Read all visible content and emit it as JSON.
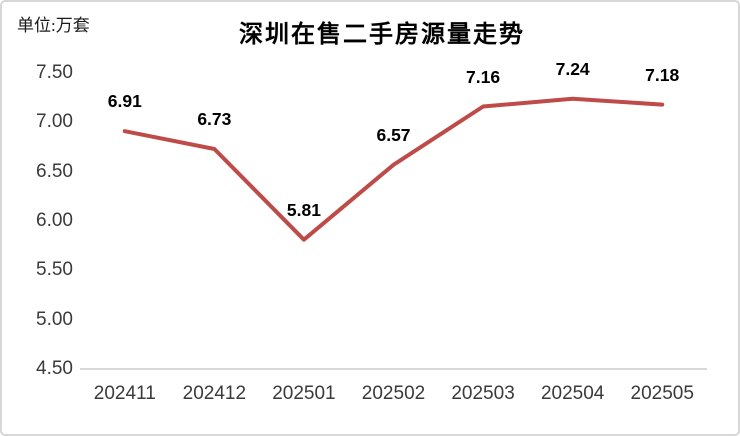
{
  "chart_data": {
    "type": "line",
    "title": "深圳在售二手房源量走势",
    "unit_label": "单位:万套",
    "categories": [
      "202411",
      "202412",
      "202501",
      "202502",
      "202503",
      "202504",
      "202505"
    ],
    "series": [
      {
        "name": "在售二手房源量",
        "values": [
          6.91,
          6.73,
          5.81,
          6.57,
          7.16,
          7.24,
          7.18
        ]
      }
    ],
    "point_labels": [
      "6.91",
      "6.73",
      "5.81",
      "6.57",
      "7.16",
      "7.24",
      "7.18"
    ],
    "y_ticks": [
      "7.50",
      "7.00",
      "6.50",
      "6.00",
      "5.50",
      "5.00",
      "4.50"
    ],
    "ylim": [
      4.5,
      7.5
    ],
    "xlabel": "",
    "ylabel": "单位:万套",
    "grid": false,
    "legend_position": "none",
    "line_color": "#be4b48",
    "axis_line_color": "#d9d9d9",
    "tick_text_color": "#3a3a3a",
    "label_text_color": "#000000"
  }
}
